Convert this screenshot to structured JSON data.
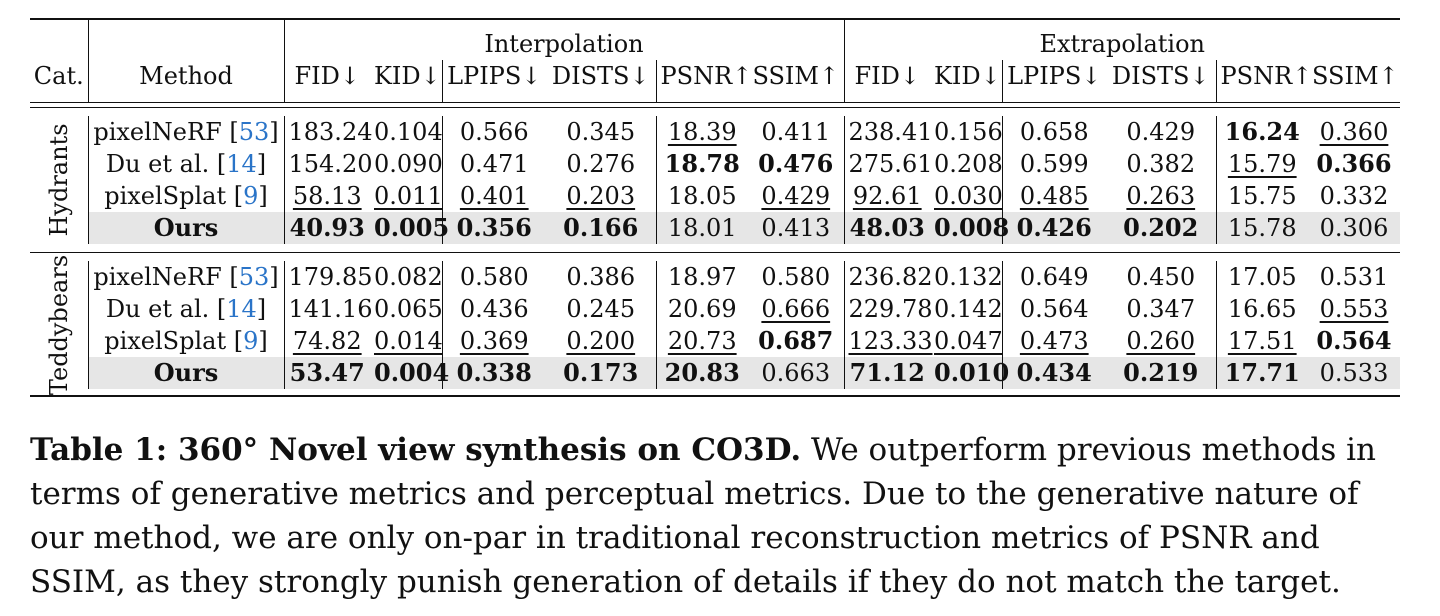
{
  "table": {
    "group_headers": [
      "Interpolation",
      "Extrapolation"
    ],
    "col_cat": "Cat.",
    "col_method": "Method",
    "metric_headers": [
      "FID↓",
      "KID↓",
      "LPIPS↓",
      "DISTS↓",
      "PSNR↑",
      "SSIM↑",
      "FID↓",
      "KID↓",
      "LPIPS↓",
      "DISTS↓",
      "PSNR↑",
      "SSIM↑"
    ],
    "sections": [
      {
        "category": "Hydrants",
        "rows": [
          {
            "method": "pixelNeRF",
            "cite": "53",
            "values": [
              "183.24",
              "0.104",
              "0.566",
              "0.345",
              "18.39",
              "0.411",
              "238.41",
              "0.156",
              "0.658",
              "0.429",
              "16.24",
              "0.360"
            ]
          },
          {
            "method": "Du et al.",
            "cite": "14",
            "values": [
              "154.20",
              "0.090",
              "0.471",
              "0.276",
              "18.78",
              "0.476",
              "275.61",
              "0.208",
              "0.599",
              "0.382",
              "15.79",
              "0.366"
            ]
          },
          {
            "method": "pixelSplat",
            "cite": "9",
            "values": [
              "58.13",
              "0.011",
              "0.401",
              "0.203",
              "18.05",
              "0.429",
              "92.61",
              "0.030",
              "0.485",
              "0.263",
              "15.75",
              "0.332"
            ]
          },
          {
            "method": "Ours",
            "cite": "",
            "values": [
              "40.93",
              "0.005",
              "0.356",
              "0.166",
              "18.01",
              "0.413",
              "48.03",
              "0.008",
              "0.426",
              "0.202",
              "15.78",
              "0.306"
            ]
          }
        ]
      },
      {
        "category": "Teddybears",
        "rows": [
          {
            "method": "pixelNeRF",
            "cite": "53",
            "values": [
              "179.85",
              "0.082",
              "0.580",
              "0.386",
              "18.97",
              "0.580",
              "236.82",
              "0.132",
              "0.649",
              "0.450",
              "17.05",
              "0.531"
            ]
          },
          {
            "method": "Du et al.",
            "cite": "14",
            "values": [
              "141.16",
              "0.065",
              "0.436",
              "0.245",
              "20.69",
              "0.666",
              "229.78",
              "0.142",
              "0.564",
              "0.347",
              "16.65",
              "0.553"
            ]
          },
          {
            "method": "pixelSplat",
            "cite": "9",
            "values": [
              "74.82",
              "0.014",
              "0.369",
              "0.200",
              "20.73",
              "0.687",
              "123.33",
              "0.047",
              "0.473",
              "0.260",
              "17.51",
              "0.564"
            ]
          },
          {
            "method": "Ours",
            "cite": "",
            "values": [
              "53.47",
              "0.004",
              "0.338",
              "0.173",
              "20.83",
              "0.663",
              "71.12",
              "0.010",
              "0.434",
              "0.219",
              "17.71",
              "0.533"
            ]
          }
        ]
      }
    ]
  },
  "caption": {
    "label": "Table 1: 360° Novel view synthesis on CO3D.",
    "text": " We outperform previous methods in terms of generative metrics and perceptual metrics. Due to the generative nature of our method, we are only on-par in traditional reconstruction metrics of PSNR and SSIM, as they strongly punish generation of details if they do not match the target."
  }
}
